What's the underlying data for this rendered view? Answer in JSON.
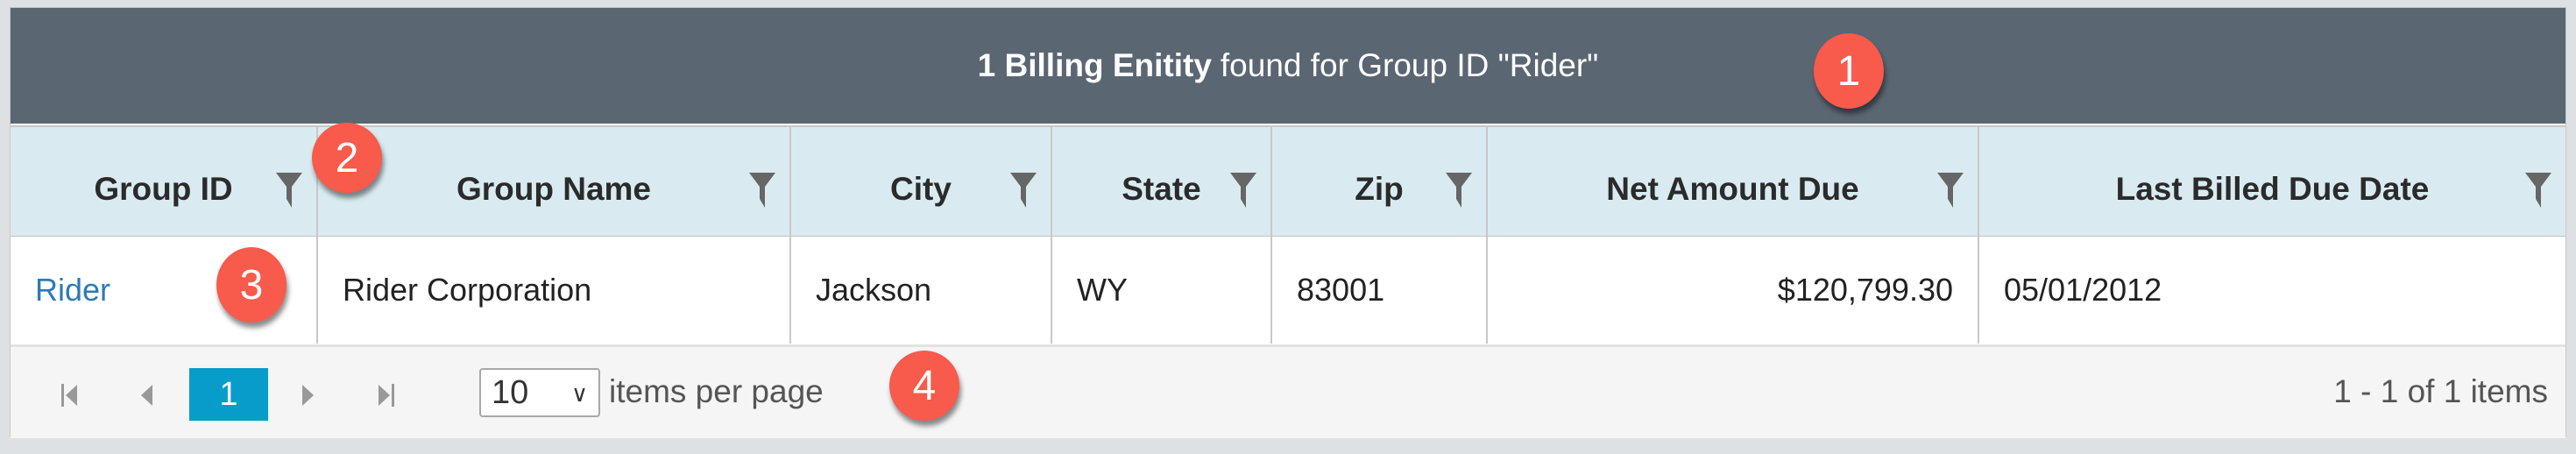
{
  "title": {
    "count_label": "1 Billing Enitity",
    "suffix": "found for Group ID \"Rider\""
  },
  "columns": [
    {
      "label": "Group ID",
      "icon": "filter-icon"
    },
    {
      "label": "Group Name",
      "icon": "filter-icon"
    },
    {
      "label": "City",
      "icon": "filter-icon"
    },
    {
      "label": "State",
      "icon": "filter-icon"
    },
    {
      "label": "Zip",
      "icon": "filter-icon"
    },
    {
      "label": "Net Amount Due",
      "icon": "filter-icon"
    },
    {
      "label": "Last Billed Due Date",
      "icon": "filter-icon"
    }
  ],
  "rows": [
    {
      "group_id": "Rider",
      "group_name": "Rider Corporation",
      "city": "Jackson",
      "state": "WY",
      "zip": "83001",
      "net_amount_due": "$120,799.30",
      "last_billed_due_date": "05/01/2012"
    }
  ],
  "pager": {
    "current_page": "1",
    "page_size": "10",
    "items_per_page_label": "items per page",
    "info": "1 - 1 of 1 items"
  },
  "annotations": [
    "1",
    "2",
    "3",
    "4"
  ],
  "colors": {
    "title_bar": "#5b6673",
    "header": "#d9ebf1",
    "link": "#2f7ab8",
    "active_page": "#079cca",
    "annotation": "#f85a4b"
  }
}
